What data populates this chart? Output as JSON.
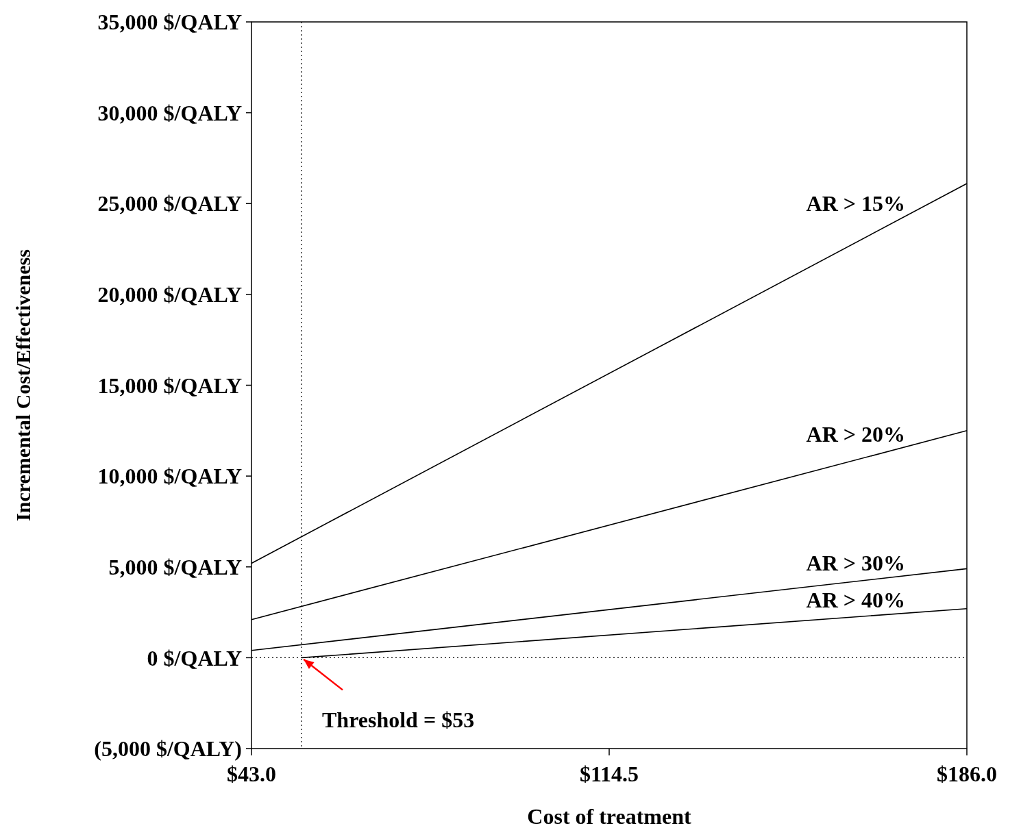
{
  "chart_data": {
    "type": "line",
    "xlabel": "Cost of treatment",
    "ylabel": "Incremental Cost/Effectiveness",
    "xlim": [
      43,
      186
    ],
    "ylim": [
      -5000,
      35000
    ],
    "xticks": [
      {
        "value": 43,
        "label": "$43.0"
      },
      {
        "value": 114.5,
        "label": "$114.5"
      },
      {
        "value": 186,
        "label": "$186.0"
      }
    ],
    "yticks": [
      {
        "value": -5000,
        "label": "(5,000 $/QALY)"
      },
      {
        "value": 0,
        "label": "0 $/QALY"
      },
      {
        "value": 5000,
        "label": "5,000 $/QALY"
      },
      {
        "value": 10000,
        "label": "10,000 $/QALY"
      },
      {
        "value": 15000,
        "label": "15,000 $/QALY"
      },
      {
        "value": 20000,
        "label": "20,000 $/QALY"
      },
      {
        "value": 25000,
        "label": "25,000 $/QALY"
      },
      {
        "value": 30000,
        "label": "30,000 $/QALY"
      },
      {
        "value": 35000,
        "label": "35,000 $/QALY"
      }
    ],
    "grid": false,
    "marker": "none",
    "line_style": "solid",
    "series": [
      {
        "name": "AR > 15%",
        "color": "#000000",
        "x": [
          43,
          186
        ],
        "values": [
          5200,
          26100
        ]
      },
      {
        "name": "AR > 20%",
        "color": "#000000",
        "x": [
          43,
          186
        ],
        "values": [
          2100,
          12500
        ]
      },
      {
        "name": "AR > 30%",
        "color": "#000000",
        "x": [
          43,
          186
        ],
        "values": [
          400,
          4900
        ]
      },
      {
        "name": "AR > 40%",
        "color": "#000000",
        "x": [
          53,
          186
        ],
        "values": [
          0,
          2700
        ]
      }
    ],
    "ref_lines": [
      {
        "axis": "x",
        "value": 53,
        "line_style": "dotted",
        "color": "#000000"
      },
      {
        "axis": "y",
        "value": 0,
        "line_style": "dotted",
        "color": "#000000"
      }
    ],
    "annotations": [
      {
        "text": "Threshold = $53",
        "x": 53,
        "y": 0
      }
    ]
  }
}
